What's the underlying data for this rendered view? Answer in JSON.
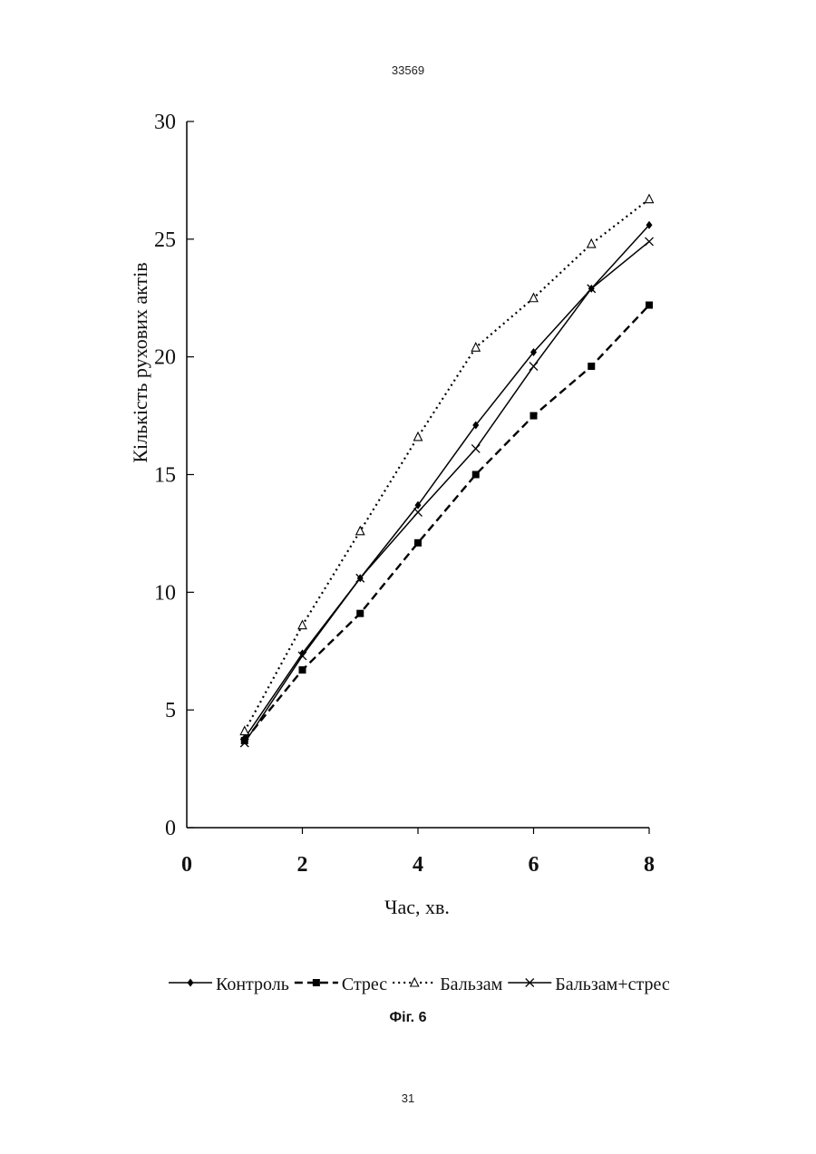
{
  "page": {
    "header_number": "33569",
    "footer_number": "31",
    "figure_caption": "Фіг. 6"
  },
  "chart_data": {
    "type": "line",
    "title": "",
    "xlabel": "Час, хв.",
    "ylabel": "Кількість рухових актів",
    "xlim": [
      0,
      8
    ],
    "ylim": [
      0,
      30
    ],
    "xticks": [
      0,
      2,
      4,
      6,
      8
    ],
    "yticks": [
      0,
      5,
      10,
      15,
      20,
      25,
      30
    ],
    "grid": false,
    "legend_position": "bottom",
    "x": [
      1,
      2,
      3,
      4,
      5,
      6,
      7,
      8
    ],
    "series": [
      {
        "name": "Контроль",
        "marker": "diamond",
        "line": "solid",
        "color": "#000000",
        "values": [
          3.8,
          7.4,
          10.6,
          13.7,
          17.1,
          20.2,
          22.9,
          25.6
        ]
      },
      {
        "name": "Стрес",
        "marker": "square",
        "line": "dashed",
        "color": "#000000",
        "values": [
          3.7,
          6.7,
          9.1,
          12.1,
          15.0,
          17.5,
          19.6,
          22.2
        ]
      },
      {
        "name": "Бальзам",
        "marker": "triangle",
        "line": "dotted",
        "color": "#000000",
        "values": [
          4.1,
          8.6,
          12.6,
          16.6,
          20.4,
          22.5,
          24.8,
          26.7
        ]
      },
      {
        "name": "Бальзам+стрес",
        "marker": "x",
        "line": "solid",
        "color": "#000000",
        "values": [
          3.6,
          7.3,
          10.6,
          13.4,
          16.1,
          19.6,
          22.9,
          24.9
        ]
      }
    ]
  }
}
